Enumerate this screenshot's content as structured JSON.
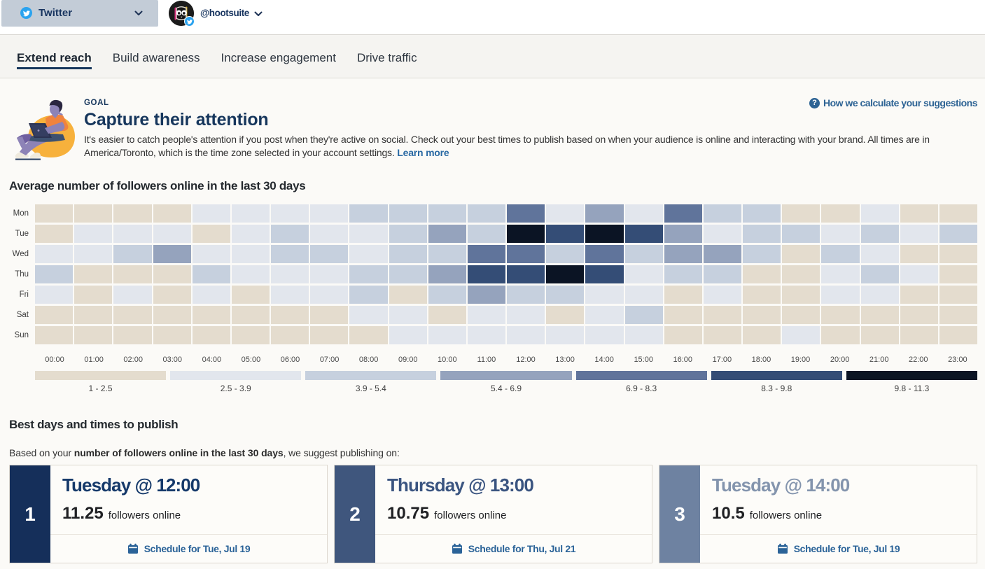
{
  "header": {
    "network_selector": {
      "label": "Twitter"
    },
    "account": {
      "handle": "@hootsuite"
    }
  },
  "tabs": [
    {
      "label": "Extend reach",
      "active": true
    },
    {
      "label": "Build awareness",
      "active": false
    },
    {
      "label": "Increase engagement",
      "active": false
    },
    {
      "label": "Drive traffic",
      "active": false
    }
  ],
  "goal": {
    "eyebrow": "GOAL",
    "title": "Capture their attention",
    "description_line1": "It's easier to catch people's attention if you post when they're active on social. Check out your best times to publish based on when your audience is online and interacting with your brand. All times are in",
    "description_line2": "America/Toronto, which is the time zone selected in your account settings.",
    "learn_more_label": "Learn more",
    "help_link_label": "How we calculate your suggestions"
  },
  "chart_data": {
    "type": "heatmap",
    "title": "Average number of followers online in the last 30 days",
    "rows": [
      "Mon",
      "Tue",
      "Wed",
      "Thu",
      "Fri",
      "Sat",
      "Sun"
    ],
    "columns": [
      "00:00",
      "01:00",
      "02:00",
      "03:00",
      "04:00",
      "05:00",
      "06:00",
      "07:00",
      "08:00",
      "09:00",
      "10:00",
      "11:00",
      "12:00",
      "13:00",
      "14:00",
      "15:00",
      "16:00",
      "17:00",
      "18:00",
      "19:00",
      "20:00",
      "21:00",
      "22:00",
      "23:00"
    ],
    "values": [
      [
        1.8,
        1.8,
        1.8,
        1.8,
        3.2,
        3.2,
        3.2,
        3.2,
        4.7,
        4.7,
        4.7,
        4.7,
        7.6,
        3.2,
        6.2,
        3.2,
        7.6,
        4.7,
        4.7,
        1.8,
        1.8,
        3.2,
        1.8,
        1.8
      ],
      [
        1.8,
        3.2,
        3.2,
        3.2,
        1.8,
        3.2,
        4.7,
        3.2,
        3.2,
        4.7,
        6.2,
        4.7,
        11.25,
        9.0,
        10.5,
        9.0,
        6.2,
        3.2,
        4.7,
        4.7,
        3.2,
        4.7,
        3.2,
        4.7
      ],
      [
        3.2,
        3.2,
        4.7,
        6.2,
        3.2,
        3.2,
        4.7,
        4.7,
        3.2,
        4.7,
        4.7,
        7.6,
        7.6,
        4.7,
        7.6,
        4.7,
        6.2,
        6.2,
        4.7,
        1.8,
        4.7,
        3.2,
        1.8,
        1.8
      ],
      [
        4.7,
        1.8,
        1.8,
        1.8,
        4.7,
        3.2,
        3.2,
        3.2,
        4.7,
        4.7,
        6.2,
        9.0,
        9.0,
        10.75,
        9.0,
        3.2,
        4.7,
        4.7,
        1.8,
        1.8,
        3.2,
        4.7,
        3.2,
        1.8
      ],
      [
        3.2,
        1.8,
        3.2,
        1.8,
        3.2,
        1.8,
        3.2,
        3.2,
        4.7,
        1.8,
        4.7,
        6.2,
        4.7,
        4.7,
        3.2,
        3.2,
        1.8,
        3.2,
        1.8,
        1.8,
        3.2,
        3.2,
        1.8,
        1.8
      ],
      [
        1.8,
        1.8,
        1.8,
        1.8,
        1.8,
        1.8,
        1.8,
        1.8,
        3.2,
        3.2,
        1.8,
        3.2,
        3.2,
        1.8,
        3.2,
        4.7,
        1.8,
        1.8,
        1.8,
        1.8,
        1.8,
        1.8,
        1.8,
        1.8
      ],
      [
        1.8,
        1.8,
        1.8,
        1.8,
        1.8,
        1.8,
        1.8,
        1.8,
        1.8,
        3.2,
        3.2,
        3.2,
        3.2,
        3.2,
        3.2,
        3.2,
        1.8,
        1.8,
        1.8,
        3.2,
        1.8,
        1.8,
        1.8,
        1.8
      ]
    ],
    "legend": {
      "thresholds": [
        1,
        2.5,
        3.9,
        5.4,
        6.9,
        8.3,
        9.8,
        11.3
      ],
      "labels": [
        "1 - 2.5",
        "2.5 - 3.9",
        "3.9 - 5.4",
        "5.4 - 6.9",
        "6.9 - 8.3",
        "8.3 - 9.8",
        "9.8 - 11.3"
      ],
      "colors": [
        "#e4dcce",
        "#e2e6ed",
        "#c6d0de",
        "#95a3bd",
        "#60749b",
        "#344d76",
        "#0b1424"
      ]
    }
  },
  "best": {
    "heading": "Best days and times to publish",
    "intro_prefix": "Based on your ",
    "intro_bold": "number of followers online in the last 30 days",
    "intro_suffix": ", we suggest publishing on:",
    "cards": [
      {
        "rank": "1",
        "title": "Tuesday @ 12:00",
        "value": "11.25",
        "unit": "followers online",
        "action": "Schedule for Tue, Jul 19",
        "strip_color": "#152f5a",
        "title_color": "#15396a"
      },
      {
        "rank": "2",
        "title": "Thursday @ 13:00",
        "value": "10.75",
        "unit": "followers online",
        "action": "Schedule for Thu, Jul 21",
        "strip_color": "#3f567d",
        "title_color": "#3a5480"
      },
      {
        "rank": "3",
        "title": "Tuesday @ 14:00",
        "value": "10.5",
        "unit": "followers online",
        "action": "Schedule for Tue, Jul 19",
        "strip_color": "#6e82a1",
        "title_color": "#8394ad"
      }
    ]
  }
}
